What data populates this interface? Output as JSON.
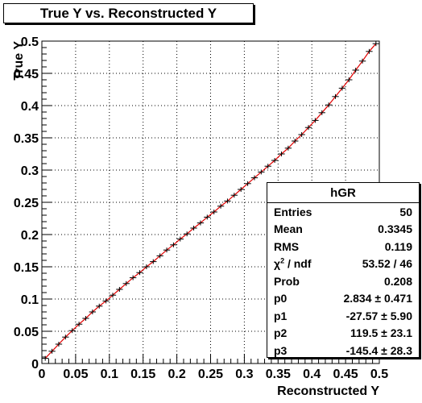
{
  "chart_data": {
    "type": "scatter",
    "title": "True Y vs. Reconstructed Y",
    "xlabel": "Reconstructed Y",
    "ylabel": "True Y",
    "xlim": [
      0,
      0.5
    ],
    "ylim": [
      0,
      0.5
    ],
    "xticks": [
      "0",
      "0.05",
      "0.1",
      "0.15",
      "0.2",
      "0.25",
      "0.3",
      "0.35",
      "0.4",
      "0.45",
      "0.5"
    ],
    "yticks": [
      "0",
      "0.05",
      "0.1",
      "0.15",
      "0.2",
      "0.25",
      "0.3",
      "0.35",
      "0.4",
      "0.45",
      "0.5"
    ],
    "grid": true,
    "x": [
      0.005,
      0.015,
      0.025,
      0.035,
      0.045,
      0.055,
      0.065,
      0.075,
      0.085,
      0.095,
      0.105,
      0.115,
      0.125,
      0.135,
      0.145,
      0.155,
      0.165,
      0.175,
      0.185,
      0.195,
      0.205,
      0.215,
      0.225,
      0.235,
      0.245,
      0.255,
      0.265,
      0.275,
      0.285,
      0.295,
      0.305,
      0.315,
      0.325,
      0.335,
      0.345,
      0.355,
      0.365,
      0.375,
      0.385,
      0.395,
      0.405,
      0.415,
      0.425,
      0.435,
      0.445,
      0.455,
      0.465,
      0.475,
      0.485,
      0.495
    ],
    "y": [
      0.008,
      0.019,
      0.03,
      0.041,
      0.051,
      0.061,
      0.07,
      0.08,
      0.089,
      0.097,
      0.106,
      0.115,
      0.124,
      0.133,
      0.141,
      0.15,
      0.158,
      0.167,
      0.176,
      0.184,
      0.193,
      0.201,
      0.21,
      0.218,
      0.227,
      0.235,
      0.244,
      0.252,
      0.261,
      0.27,
      0.279,
      0.288,
      0.297,
      0.306,
      0.315,
      0.325,
      0.334,
      0.345,
      0.355,
      0.366,
      0.377,
      0.389,
      0.401,
      0.414,
      0.427,
      0.44,
      0.455,
      0.469,
      0.484,
      0.496
    ],
    "xerr": 0.005,
    "fit_line_color": "#e00000",
    "marker_color": "#000000"
  },
  "stats": {
    "name": "hGR",
    "rows": [
      {
        "label": "Entries",
        "value": "50"
      },
      {
        "label": "Mean",
        "value": "0.3345"
      },
      {
        "label": "RMS",
        "value": "0.119"
      },
      {
        "label": "χ2 / ndf",
        "value": "53.52 / 46"
      },
      {
        "label": "Prob",
        "value": "0.208"
      },
      {
        "label": "p0",
        "value": "2.834 ± 0.471"
      },
      {
        "label": "p1",
        "value": "-27.57 ± 5.90"
      },
      {
        "label": "p2",
        "value": "119.5 ± 23.1"
      },
      {
        "label": "p3",
        "value": "-145.4 ± 28.3"
      }
    ]
  }
}
